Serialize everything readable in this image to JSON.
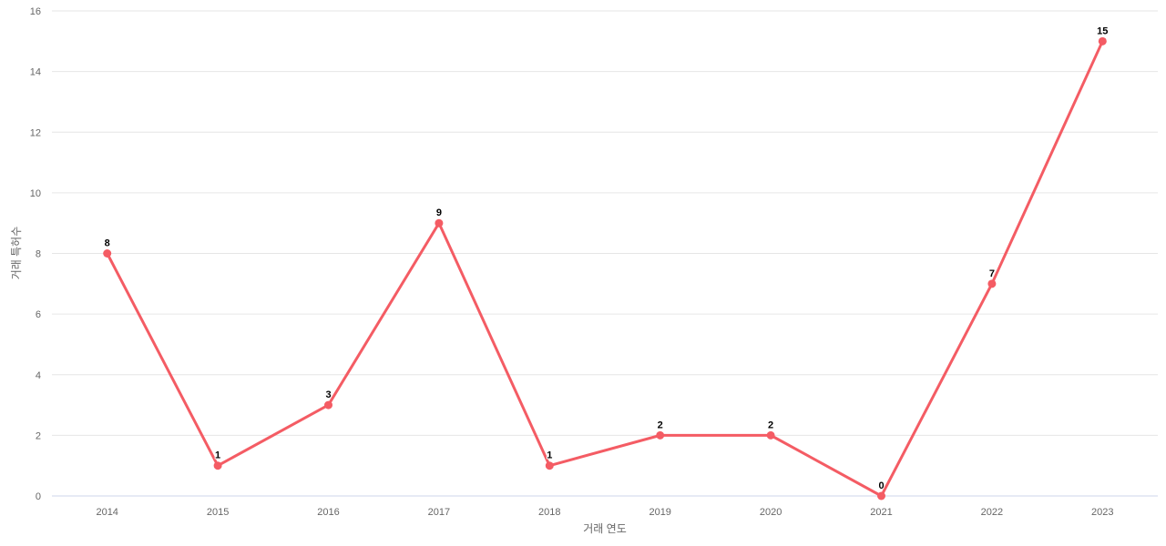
{
  "chart_data": {
    "type": "line",
    "categories": [
      "2014",
      "2015",
      "2016",
      "2017",
      "2018",
      "2019",
      "2020",
      "2021",
      "2022",
      "2023"
    ],
    "values": [
      8,
      1,
      3,
      9,
      1,
      2,
      2,
      0,
      7,
      15
    ],
    "title": "",
    "xlabel": "거래 연도",
    "ylabel": "거래 특허수",
    "ylim": [
      0,
      16
    ],
    "ytick_step": 2,
    "yticks": [
      0,
      2,
      4,
      6,
      8,
      10,
      12,
      14,
      16
    ],
    "grid": true,
    "legend_position": "none",
    "data_labels_shown": true,
    "colors": {
      "series": "#f45c64",
      "grid_line": "#e6e6e6",
      "axis_line": "#ccd6eb",
      "tick_label": "#666666",
      "axis_title": "#666666",
      "data_label": "#000000",
      "background": "#ffffff"
    }
  }
}
